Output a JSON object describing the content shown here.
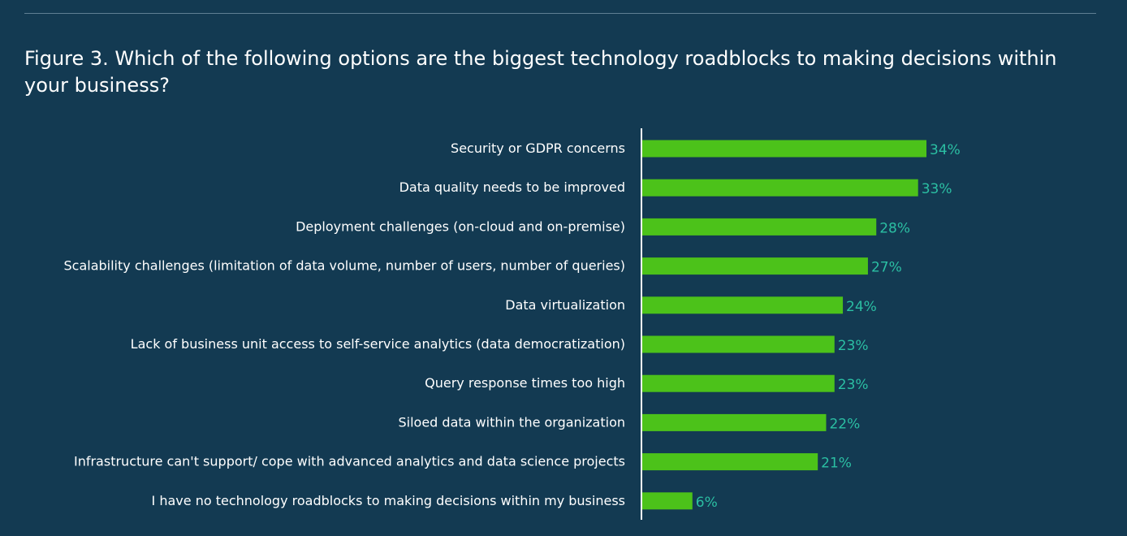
{
  "title": "Figure 3. Which of the following options are the biggest technology roadblocks to making decisions within your business?",
  "colors": {
    "background": "#133a52",
    "bar": "#4cc21a",
    "value_label": "#2bbfa3",
    "axis": "#ffffff",
    "text": "#ffffff"
  },
  "chart_data": {
    "type": "bar",
    "orientation": "horizontal",
    "title": "Figure 3. Which of the following options are the biggest technology roadblocks to making decisions within your business?",
    "xlabel": "",
    "ylabel": "",
    "xlim": [
      0,
      34
    ],
    "grid": false,
    "legend": "none",
    "categories": [
      "Security or GDPR concerns",
      "Data quality needs to be improved",
      "Deployment challenges (on-cloud and on-premise)",
      "Scalability challenges (limitation of data volume, number of users, number of queries)",
      "Data virtualization",
      "Lack of business unit access to self-service analytics (data democratization)",
      "Query response times too high",
      "Siloed data within the organization",
      "Infrastructure can't support/ cope with advanced analytics and data science projects",
      "I have no technology roadblocks to making decisions within my business"
    ],
    "values": [
      34,
      33,
      28,
      27,
      24,
      23,
      23,
      22,
      21,
      6
    ],
    "value_labels": [
      "34%",
      "33%",
      "28%",
      "27%",
      "24%",
      "23%",
      "23%",
      "22%",
      "21%",
      "6%"
    ]
  }
}
